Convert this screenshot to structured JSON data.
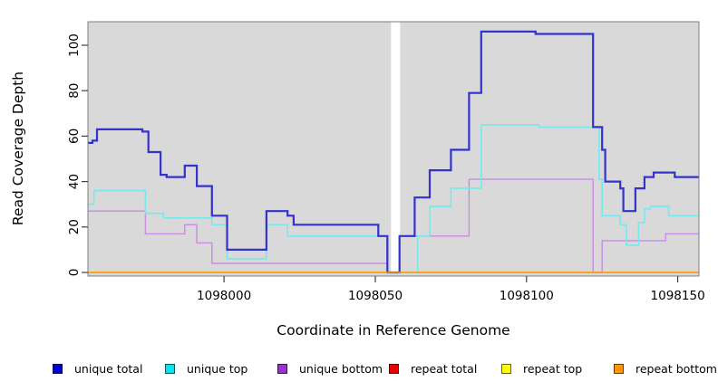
{
  "chart_data": {
    "type": "line",
    "step_style": "step-after",
    "title": "",
    "xlabel": "Coordinate in Reference Genome",
    "ylabel": "Read Coverage Depth",
    "xlim": [
      1097955,
      1098157
    ],
    "ylim": [
      0,
      110
    ],
    "x_ticks": [
      1098000,
      1098050,
      1098100,
      1098150
    ],
    "y_ticks": [
      0,
      20,
      40,
      60,
      80,
      100
    ],
    "grid": false,
    "plot_background": "#d9d9d9",
    "border_color": "#7f7f7f",
    "gap_region": {
      "from": 1098055.2,
      "to": 1098058.2,
      "color": "#ffffff"
    },
    "legend_position": "bottom",
    "series": [
      {
        "name": "unique total",
        "color": "#3232cd",
        "legend_color": "#0000dd",
        "lw": 2.2,
        "points": [
          [
            1097955,
            57
          ],
          [
            1097956.5,
            58
          ],
          [
            1097958,
            63
          ],
          [
            1097973,
            62
          ],
          [
            1097975,
            53
          ],
          [
            1097979,
            43
          ],
          [
            1097981,
            42
          ],
          [
            1097987,
            47
          ],
          [
            1097991,
            38
          ],
          [
            1097996,
            25
          ],
          [
            1098001,
            10
          ],
          [
            1098014,
            27
          ],
          [
            1098021,
            25
          ],
          [
            1098023,
            21
          ],
          [
            1098051,
            16
          ],
          [
            1098054,
            0
          ],
          [
            1098058,
            16
          ],
          [
            1098063,
            33
          ],
          [
            1098068,
            45
          ],
          [
            1098075,
            54
          ],
          [
            1098081,
            79
          ],
          [
            1098085,
            106
          ],
          [
            1098103,
            105
          ],
          [
            1098122,
            64
          ],
          [
            1098125,
            54
          ],
          [
            1098126,
            40
          ],
          [
            1098131,
            37
          ],
          [
            1098132,
            27
          ],
          [
            1098136,
            37
          ],
          [
            1098139,
            42
          ],
          [
            1098142,
            44
          ],
          [
            1098149,
            42
          ]
        ]
      },
      {
        "name": "unique top",
        "color": "#79e8ec",
        "legend_color": "#00e5ee",
        "lw": 1.6,
        "points": [
          [
            1097955,
            30
          ],
          [
            1097957,
            36
          ],
          [
            1097974,
            26
          ],
          [
            1097980,
            24
          ],
          [
            1097996,
            21
          ],
          [
            1098001,
            6
          ],
          [
            1098014,
            21
          ],
          [
            1098021,
            16
          ],
          [
            1098054,
            0
          ],
          [
            1098064,
            16
          ],
          [
            1098068,
            29
          ],
          [
            1098075,
            37
          ],
          [
            1098085,
            65
          ],
          [
            1098104,
            64
          ],
          [
            1098124,
            41
          ],
          [
            1098125,
            25
          ],
          [
            1098131,
            21
          ],
          [
            1098133,
            12
          ],
          [
            1098137,
            22
          ],
          [
            1098139,
            28
          ],
          [
            1098141,
            29
          ],
          [
            1098147,
            25
          ]
        ]
      },
      {
        "name": "unique bottom",
        "color": "#c98be4",
        "legend_color": "#9a32cd",
        "lw": 1.4,
        "points": [
          [
            1097955,
            27
          ],
          [
            1097974,
            17
          ],
          [
            1097987,
            21
          ],
          [
            1097991,
            13
          ],
          [
            1097996,
            4
          ],
          [
            1098054,
            0
          ],
          [
            1098058,
            16
          ],
          [
            1098081,
            41
          ],
          [
            1098122,
            0
          ],
          [
            1098125,
            14
          ],
          [
            1098146,
            17
          ]
        ]
      },
      {
        "name": "repeat total",
        "color": "#dd0000",
        "legend_color": "#ee0000",
        "lw": 1.2,
        "points": [
          [
            1097955,
            0
          ]
        ]
      },
      {
        "name": "repeat top",
        "color": "#ffff00",
        "legend_color": "#ffff00",
        "lw": 1.2,
        "points": [
          [
            1097955,
            0
          ]
        ]
      },
      {
        "name": "repeat bottom",
        "color": "#ffa000",
        "legend_color": "#ff9700",
        "lw": 1.6,
        "points": [
          [
            1097955,
            0
          ]
        ]
      }
    ],
    "draw_order": [
      3,
      4,
      2,
      1,
      0,
      5
    ]
  }
}
